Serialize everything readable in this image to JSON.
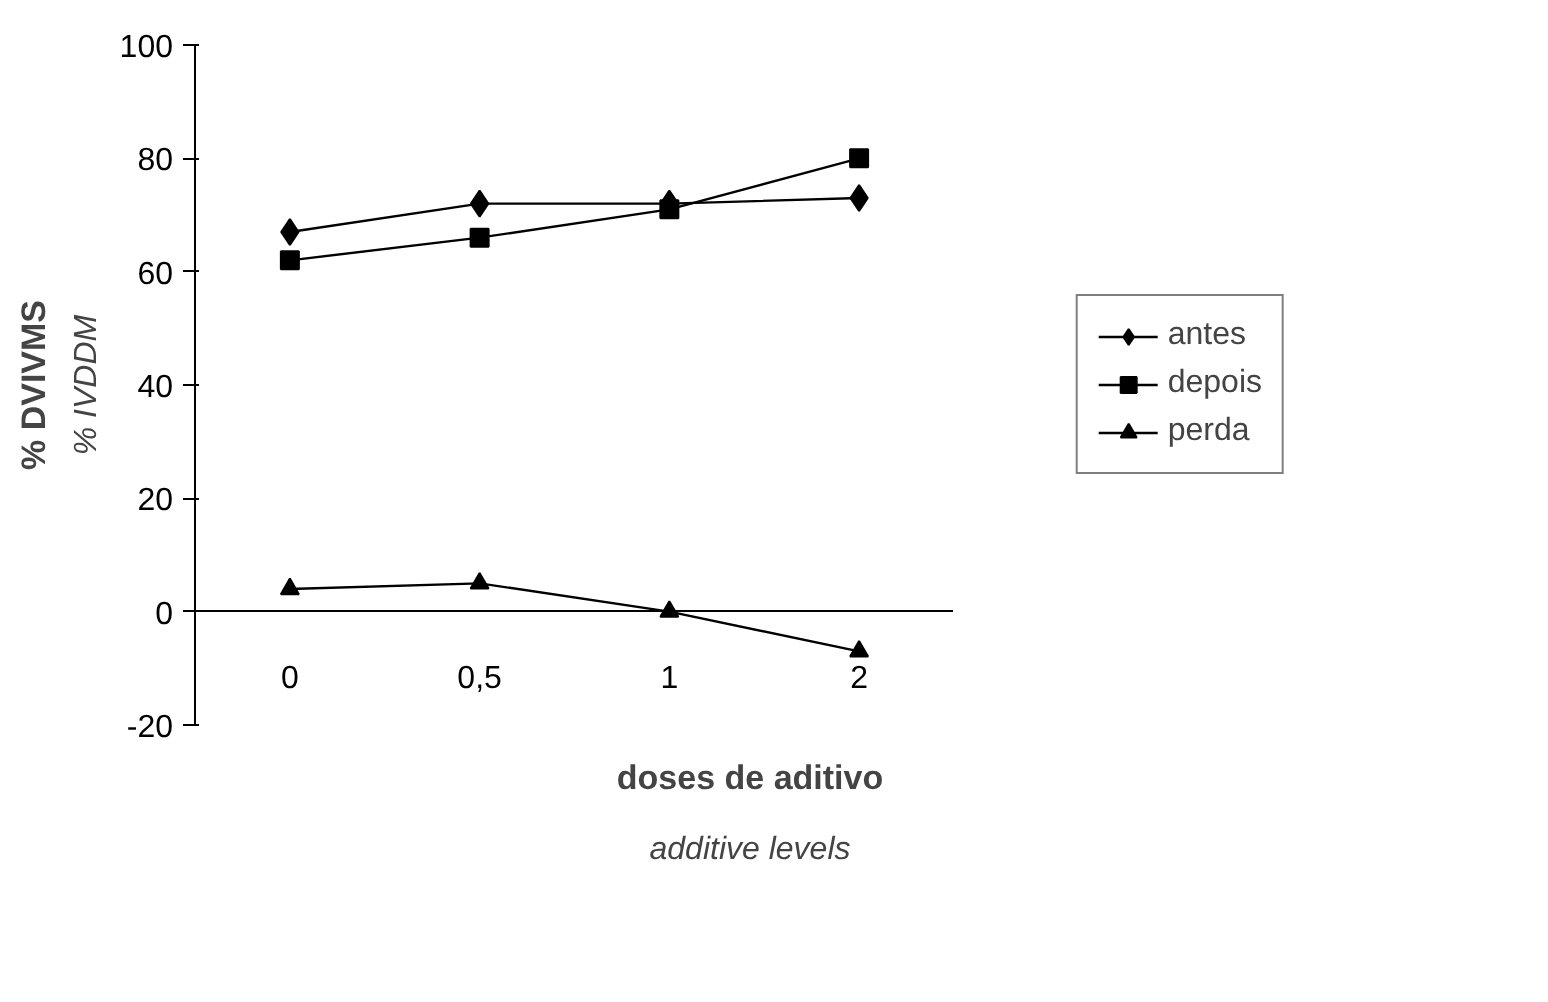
{
  "chart_data": {
    "type": "line",
    "categories": [
      "0",
      "0,5",
      "1",
      "2"
    ],
    "series": [
      {
        "name": "antes",
        "color": "#000000",
        "marker": "diamond",
        "values": [
          67,
          72,
          72,
          73
        ]
      },
      {
        "name": "depois",
        "color": "#000000",
        "marker": "square",
        "values": [
          62,
          66,
          71,
          80
        ]
      },
      {
        "name": "perda",
        "color": "#000000",
        "marker": "triangle",
        "values": [
          4,
          5,
          0,
          -7
        ]
      }
    ],
    "xlabel": "doses de aditivo\nadditive levels",
    "ylabel": "% IVDDM\n% DVIVMS",
    "ylim": [
      -20,
      100
    ],
    "yticks": [
      -20,
      0,
      20,
      40,
      60,
      80,
      100
    ],
    "grid": false,
    "legend": "right"
  }
}
